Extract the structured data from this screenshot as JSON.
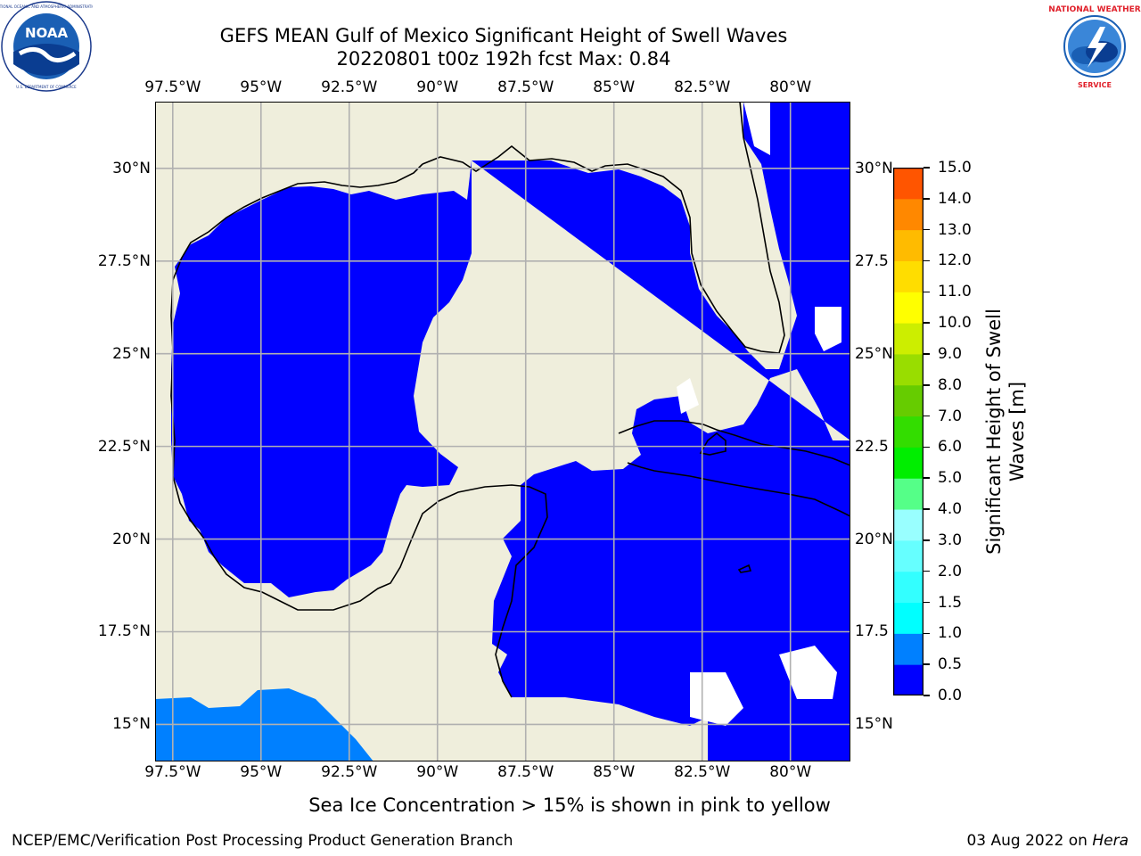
{
  "header": {
    "title_line1": "GEFS MEAN Gulf of Mexico Significant Height of Swell Waves",
    "title_line2": "20220801 t00z 192h fcst   Max: 0.84"
  },
  "logos": {
    "left": "NOAA",
    "left_ring_text": "NATIONAL OCEANIC AND ATMOSPHERIC ADMINISTRATION · U.S. DEPARTMENT OF COMMERCE",
    "right_ring_text": "NATIONAL WEATHER SERVICE"
  },
  "map": {
    "lon_labels": [
      "97.5°W",
      "95°W",
      "92.5°W",
      "90°W",
      "87.5°W",
      "85°W",
      "82.5°W",
      "80°W"
    ],
    "lat_labels_left": [
      "30°N",
      "27.5°N",
      "25°N",
      "22.5°N",
      "20°N",
      "17.5°N",
      "15°N"
    ],
    "lat_labels_right": [
      "30°N",
      "27.5",
      "25°N",
      "22.5",
      "20°N",
      "17.5",
      "15°N"
    ],
    "extent": {
      "lon_min": -98.0,
      "lon_max": -78.3,
      "lat_min": 14.0,
      "lat_max": 31.8
    },
    "colors": {
      "land": "#efeedc",
      "sea_0_0.5": "#0000ff",
      "sea_0.5_1.0": "#0080ff",
      "no_data": "#ffffff",
      "grid": "#b0b0b0"
    }
  },
  "colorbar": {
    "label": "Significant Height of Swell Waves [m]",
    "ticks": [
      "15.0",
      "14.0",
      "13.0",
      "12.0",
      "11.0",
      "10.0",
      "9.0",
      "8.0",
      "7.0",
      "6.0",
      "5.0",
      "4.0",
      "3.0",
      "2.0",
      "1.5",
      "1.0",
      "0.5",
      "0.0"
    ],
    "colors_bottom_to_top": [
      "#0000ff",
      "#0080ff",
      "#00ffff",
      "#33ffff",
      "#66ffff",
      "#99ffff",
      "#55ff88",
      "#00ee00",
      "#33dd00",
      "#66cc00",
      "#99dd00",
      "#ccee00",
      "#ffff00",
      "#ffdd00",
      "#ffbb00",
      "#ff8800",
      "#ff5500",
      "#ff2200",
      "#ff0000"
    ]
  },
  "footer": {
    "ice_note": "Sea Ice Concentration > 15% is shown in pink to yellow",
    "credit": "NCEP/EMC/Verification Post Processing Product Generation Branch",
    "date": "03 Aug 2022 on",
    "machine": "Hera"
  }
}
